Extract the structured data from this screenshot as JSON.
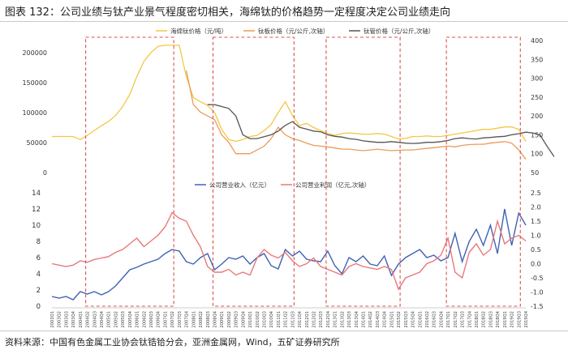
{
  "figure": {
    "title": "图表 132：公司业绩与钛产业景气程度密切相关，海绵钛的价格趋势一定程度决定公司业绩走向",
    "source": "资料来源：中国有色金属工业协会钛锆铪分会，亚洲金属网，Wind，五矿证券研究所"
  },
  "colors": {
    "sponge": "#f4c744",
    "ingot": "#ec9b59",
    "tube": "#555555",
    "revenue": "#3f62b4",
    "profit": "#e9787a",
    "boxes": "#d9534f"
  },
  "chart_data": [
    {
      "type": "line",
      "name": "top-price-chart",
      "legend_position": "top",
      "x_count": 68,
      "y_left_ticks": [
        "200000",
        "150000",
        "100000",
        "50000",
        "0"
      ],
      "y_left_lim": [
        0,
        220000
      ],
      "y_right_ticks": [
        "400",
        "350",
        "300",
        "250",
        "200",
        "150",
        "100",
        "50"
      ],
      "y_right_lim": [
        50,
        400
      ],
      "series": [
        {
          "name": "海绵钛价格（元/吨）",
          "axis": "left",
          "x_start": 0,
          "values": [
            60000,
            60000,
            60000,
            60000,
            55000,
            62000,
            70000,
            78000,
            85000,
            95000,
            110000,
            130000,
            160000,
            185000,
            200000,
            210000,
            212000,
            212000,
            212000,
            160000,
            125000,
            118000,
            112000,
            100000,
            72000,
            55000,
            52000,
            55000,
            60000,
            62000,
            70000,
            80000,
            100000,
            118000,
            95000,
            78000,
            82000,
            75000,
            70000,
            65000,
            62000,
            65000,
            66000,
            65000,
            64000,
            64000,
            65000,
            64000,
            60000,
            56000,
            57000,
            60000,
            60000,
            61000,
            60000,
            60000,
            62000,
            64000,
            66000,
            68000,
            70000,
            72000,
            72000,
            74000,
            76000,
            76000,
            72000,
            52000
          ]
        },
        {
          "name": "钛板价格（元/公斤,次轴）",
          "axis": "right",
          "x_start": 19,
          "values": [
            320,
            230,
            210,
            200,
            190,
            150,
            130,
            100,
            100,
            100,
            110,
            120,
            140,
            170,
            150,
            140,
            135,
            128,
            122,
            120,
            118,
            115,
            112,
            112,
            110,
            108,
            110,
            112,
            110,
            108,
            109,
            110,
            110,
            112,
            114,
            116,
            118,
            120,
            118,
            122,
            124,
            125,
            125,
            128,
            130,
            132,
            128,
            110,
            85
          ]
        },
        {
          "name": "钛管价格（元/公斤,次轴）",
          "axis": "right",
          "x_start": 22,
          "values": [
            230,
            230,
            225,
            220,
            200,
            150,
            140,
            140,
            145,
            150,
            160,
            175,
            185,
            170,
            165,
            160,
            158,
            150,
            146,
            144,
            140,
            138,
            134,
            132,
            130,
            130,
            132,
            130,
            128,
            127,
            128,
            130,
            130,
            132,
            135,
            140,
            142,
            140,
            139,
            142,
            143,
            145,
            146,
            150,
            153,
            157,
            155,
            150,
            120,
            92
          ]
        }
      ]
    },
    {
      "type": "line",
      "name": "bottom-finance-chart",
      "legend_position": "top",
      "x_count": 68,
      "y_left_ticks": [
        "14",
        "12",
        "10",
        "8",
        "6",
        "4",
        "2",
        "0"
      ],
      "y_left_lim": [
        0,
        14
      ],
      "y_right_ticks": [
        "2.5",
        "2.0",
        "1.5",
        "1.0",
        "0.5",
        "0.0",
        "-0.5",
        "-1.0",
        "-1.5"
      ],
      "y_right_lim": [
        -1.5,
        2.5
      ],
      "x_tick_labels": [
        "2003Q1",
        "2003Q2",
        "2003Q3",
        "2003Q4",
        "2004Q1",
        "2004Q2",
        "2004Q3",
        "2004Q4",
        "2005Q1",
        "2005Q2",
        "2005Q3",
        "2005Q4",
        "2006Q1",
        "2006Q2",
        "2006Q3",
        "2006Q4",
        "2007Q1",
        "2007Q2",
        "2007Q3",
        "2007Q4",
        "2008Q1",
        "2008Q2",
        "2008Q3",
        "2008Q4",
        "2009Q1",
        "2009Q2",
        "2009Q3",
        "2009Q4",
        "2010Q1",
        "2010Q2",
        "2010Q3",
        "2010Q4",
        "2011Q1",
        "2011Q2",
        "2011Q3",
        "2011Q4",
        "2012Q1",
        "2012Q2",
        "2012Q3",
        "2012Q4",
        "2013Q1",
        "2013Q2",
        "2013Q3",
        "2013Q4",
        "2014Q1",
        "2014Q2",
        "2014Q3",
        "2014Q4",
        "2015Q1",
        "2015Q2",
        "2015Q3",
        "2015Q4",
        "2016Q1",
        "2016Q2",
        "2016Q3",
        "2016Q4",
        "2017Q1",
        "2017Q2",
        "2017Q3",
        "2017Q4",
        "2018Q1",
        "2018Q2",
        "2018Q3",
        "2018Q4",
        "2019Q1",
        "2019Q2",
        "2019Q3",
        "2019Q4"
      ],
      "series": [
        {
          "name": "公司营业收入（亿元）",
          "axis": "left",
          "values": [
            1.2,
            1.0,
            1.2,
            0.8,
            1.8,
            1.5,
            1.8,
            1.4,
            1.8,
            2.5,
            3.5,
            4.5,
            4.8,
            5.2,
            5.5,
            5.8,
            6.5,
            7.0,
            6.8,
            5.5,
            5.2,
            6.0,
            6.5,
            4.5,
            5.2,
            6.0,
            5.8,
            6.2,
            5.2,
            6.0,
            6.5,
            5.0,
            4.6,
            7.0,
            6.2,
            6.8,
            5.8,
            5.6,
            5.5,
            6.8,
            5.0,
            4.0,
            6.0,
            5.5,
            6.2,
            5.2,
            5.0,
            6.2,
            3.8,
            5.2,
            6.0,
            6.5,
            7.0,
            6.0,
            6.3,
            5.6,
            6.0,
            9.0,
            5.5,
            8.0,
            9.5,
            7.5,
            10.0,
            6.5,
            12.0,
            7.5,
            11.5,
            10.0
          ]
        },
        {
          "name": "公司营业利润（亿元,次轴）",
          "axis": "right",
          "values": [
            0.0,
            -0.05,
            -0.1,
            -0.05,
            0.1,
            0.05,
            0.15,
            0.2,
            0.25,
            0.4,
            0.5,
            0.7,
            0.9,
            0.6,
            0.8,
            1.0,
            1.3,
            1.8,
            1.6,
            1.5,
            1.0,
            0.6,
            -0.1,
            -0.3,
            -0.3,
            -0.2,
            -0.4,
            -0.3,
            -0.4,
            0.2,
            0.5,
            0.3,
            0.2,
            0.4,
            0.1,
            -0.1,
            0.0,
            0.2,
            -0.1,
            -0.2,
            -0.3,
            -0.4,
            -0.1,
            0.0,
            -0.1,
            -0.15,
            -0.2,
            -0.1,
            -0.2,
            -0.9,
            -0.5,
            -0.4,
            -0.3,
            0.0,
            0.1,
            0.3,
            0.9,
            -0.3,
            -0.5,
            0.4,
            0.7,
            0.3,
            0.5,
            1.5,
            0.7,
            0.9,
            1.0,
            0.8
          ]
        }
      ]
    }
  ],
  "highlight_boxes_x_ranges": [
    [
      5,
      17
    ],
    [
      23,
      34
    ],
    [
      39,
      49
    ],
    [
      56,
      66
    ]
  ]
}
